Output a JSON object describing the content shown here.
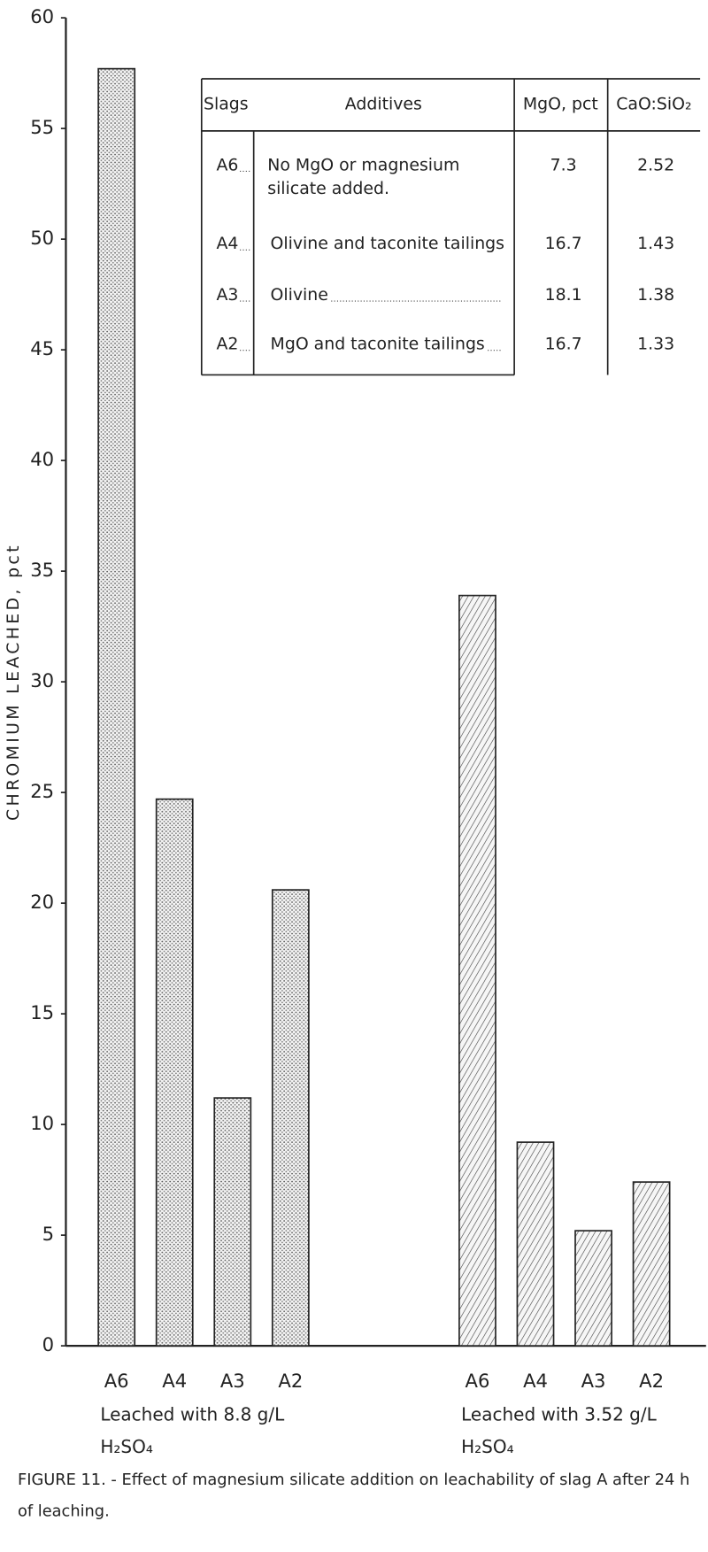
{
  "chart_data": {
    "type": "bar",
    "ylabel": "CHROMIUM LEACHED, pct",
    "ylim": [
      0,
      60
    ],
    "yticks": [
      0,
      5,
      10,
      15,
      20,
      25,
      30,
      35,
      40,
      45,
      50,
      55,
      60
    ],
    "groups": [
      {
        "label": "Leached with 8.8 g/L H₂SO₄",
        "pattern": "dots",
        "categories": [
          "A6",
          "A4",
          "A3",
          "A2"
        ],
        "values": [
          57.7,
          24.7,
          11.2,
          20.6
        ]
      },
      {
        "label": "Leached with 3.52 g/L H₂SO₄",
        "pattern": "hatch",
        "categories": [
          "A6",
          "A4",
          "A3",
          "A2"
        ],
        "values": [
          33.9,
          9.2,
          5.2,
          7.4
        ]
      }
    ],
    "table": {
      "columns": [
        "Slags",
        "Additives",
        "MgO, pct",
        "CaO:SiO₂"
      ],
      "rows": [
        [
          "A6",
          "No MgO or magnesium silicate added.",
          7.3,
          2.52
        ],
        [
          "A4",
          "Olivine and taconite tailings",
          16.7,
          1.43
        ],
        [
          "A3",
          "Olivine",
          18.1,
          1.38
        ],
        [
          "A2",
          "MgO and taconite tailings",
          16.7,
          1.33
        ]
      ]
    },
    "caption": "FIGURE 11. - Effect of magnesium silicate addition on leachability of slag A after 24 h of leaching."
  }
}
